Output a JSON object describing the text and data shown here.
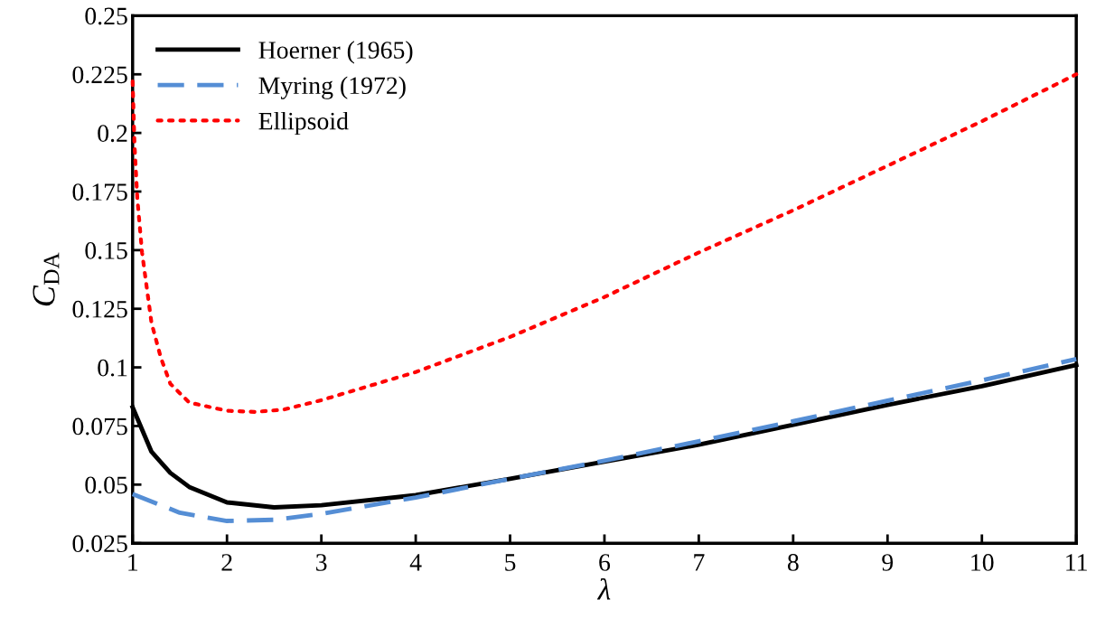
{
  "chart_data": {
    "type": "line",
    "xlabel": "λ",
    "ylabel": "C$_{DA}$",
    "xlim": [
      1,
      11
    ],
    "ylim": [
      0.025,
      0.25
    ],
    "xticks": [
      1,
      2,
      3,
      4,
      5,
      6,
      7,
      8,
      9,
      10,
      11
    ],
    "yticks": [
      0.025,
      0.05,
      0.075,
      0.1,
      0.125,
      0.15,
      0.175,
      0.2,
      0.225,
      0.25
    ],
    "grid": false,
    "legend": "top left",
    "series": [
      {
        "name": "Hoerner (1965)",
        "color": "#000000",
        "line_style": "solid",
        "x": [
          1,
          1.2,
          1.4,
          1.6,
          2,
          2.5,
          3,
          4,
          5,
          6,
          7,
          8,
          9,
          10,
          11
        ],
        "values": [
          0.083,
          0.064,
          0.055,
          0.049,
          0.0424,
          0.0403,
          0.0412,
          0.0455,
          0.0525,
          0.0598,
          0.067,
          0.0755,
          0.084,
          0.092,
          0.101
        ]
      },
      {
        "name": "Myring (1972)",
        "color": "#558ed5",
        "line_style": "dashed",
        "x": [
          1,
          1.5,
          2,
          2.5,
          3,
          4,
          5,
          6,
          7,
          8,
          9,
          10,
          11
        ],
        "values": [
          0.046,
          0.038,
          0.0345,
          0.035,
          0.0375,
          0.0445,
          0.0525,
          0.0602,
          0.0685,
          0.077,
          0.0858,
          0.0945,
          0.1035
        ]
      },
      {
        "name": "Ellipsoid",
        "color": "#ff0000",
        "line_style": "dotted",
        "x": [
          1,
          1.02,
          1.05,
          1.1,
          1.2,
          1.3,
          1.4,
          1.6,
          2,
          2.3,
          2.6,
          3,
          4,
          5,
          6,
          7,
          8,
          9,
          10,
          11
        ],
        "values": [
          0.222,
          0.195,
          0.172,
          0.149,
          0.119,
          0.104,
          0.093,
          0.085,
          0.0815,
          0.081,
          0.082,
          0.086,
          0.098,
          0.113,
          0.13,
          0.149,
          0.167,
          0.186,
          0.205,
          0.225
        ]
      }
    ]
  }
}
